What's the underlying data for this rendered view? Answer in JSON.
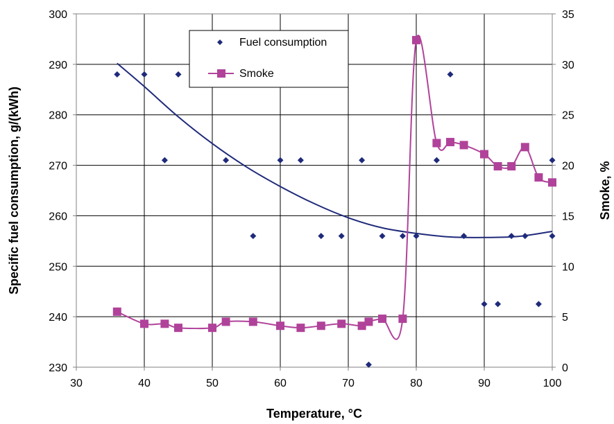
{
  "chart_data": {
    "type": "scatter",
    "title": "",
    "xlabel": "Temperature, °C",
    "ylabel_left": "Specific fuel consumption, g/(kWh)",
    "ylabel_right": "Smoke, %",
    "xlim": [
      30,
      100
    ],
    "ylim_left": [
      230,
      300
    ],
    "ylim_right": [
      0,
      35
    ],
    "x_ticks": [
      30,
      40,
      50,
      60,
      70,
      80,
      90,
      100
    ],
    "y_left_ticks": [
      230,
      240,
      250,
      260,
      270,
      280,
      290,
      300
    ],
    "y_right_ticks": [
      0,
      5,
      10,
      15,
      20,
      25,
      30,
      35
    ],
    "grid": true,
    "legend_position": "top-center",
    "series": [
      {
        "name": "Fuel consumption",
        "axis": "left",
        "marker": "diamond",
        "color": "#1f2a7a",
        "x": [
          36,
          40,
          43,
          45,
          52,
          56,
          60,
          63,
          66,
          69,
          72,
          73,
          75,
          78,
          80,
          83,
          85,
          87,
          90,
          92,
          94,
          96,
          98,
          100,
          100
        ],
        "y": [
          288,
          288,
          271,
          288,
          271,
          256,
          271,
          271,
          256,
          256,
          271,
          230.5,
          256,
          256,
          256,
          271,
          288,
          256,
          242.5,
          242.5,
          256,
          256,
          242.5,
          256,
          271
        ]
      },
      {
        "name": "Smoke",
        "axis": "right",
        "marker": "square",
        "color": "#b0429a",
        "x": [
          36,
          40,
          43,
          45,
          50,
          52,
          56,
          60,
          63,
          66,
          69,
          72,
          73,
          75,
          78,
          80,
          83,
          85,
          87,
          90,
          92,
          94,
          96,
          98,
          100
        ],
        "y": [
          5.5,
          4.3,
          4.3,
          3.9,
          3.9,
          4.5,
          4.5,
          4.1,
          3.9,
          4.1,
          4.3,
          4.1,
          4.5,
          4.8,
          4.8,
          32.4,
          22.2,
          22.3,
          22.0,
          21.1,
          19.9,
          19.9,
          21.8,
          18.8,
          18.3
        ]
      }
    ],
    "trendline": {
      "axis": "left",
      "color": "#1f2a7a",
      "x": [
        36,
        40,
        45,
        50,
        55,
        60,
        65,
        70,
        75,
        80,
        85,
        90,
        95,
        100
      ],
      "y": [
        290.2,
        285.6,
        279.6,
        274.3,
        269.7,
        265.8,
        262.4,
        259.6,
        257.6,
        256.5,
        255.8,
        255.7,
        255.9,
        256.9
      ]
    }
  }
}
